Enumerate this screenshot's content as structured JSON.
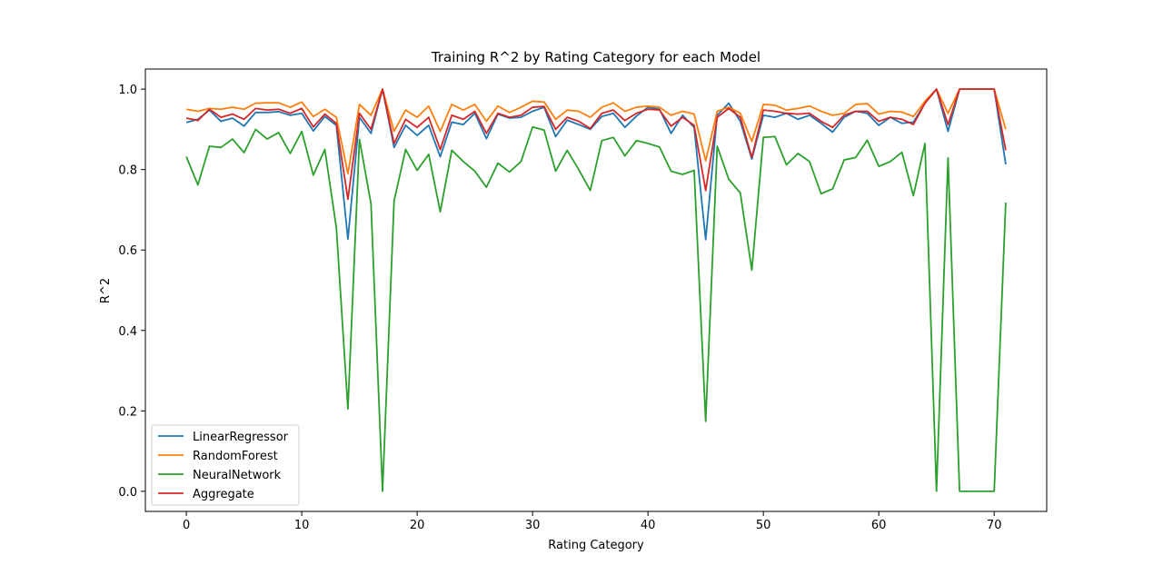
{
  "chart_data": {
    "type": "line",
    "title": "Training R^2 by Rating Category for each Model",
    "xlabel": "Rating Category",
    "ylabel": "R^2",
    "xlim": [
      -3.55,
      74.55
    ],
    "ylim": [
      -0.05,
      1.05
    ],
    "xticks": [
      0,
      10,
      20,
      30,
      40,
      50,
      60,
      70
    ],
    "yticks": [
      0.0,
      0.2,
      0.4,
      0.6,
      0.8,
      1.0
    ],
    "ytick_labels": [
      "0.0",
      "0.2",
      "0.4",
      "0.6",
      "0.8",
      "1.0"
    ],
    "grid": false,
    "legend_position": "lower-left",
    "x": [
      0,
      1,
      2,
      3,
      4,
      5,
      6,
      7,
      8,
      9,
      10,
      11,
      12,
      13,
      14,
      15,
      16,
      17,
      18,
      19,
      20,
      21,
      22,
      23,
      24,
      25,
      26,
      27,
      28,
      29,
      30,
      31,
      32,
      33,
      34,
      35,
      36,
      37,
      38,
      39,
      40,
      41,
      42,
      43,
      44,
      45,
      46,
      47,
      48,
      49,
      50,
      51,
      52,
      53,
      54,
      55,
      56,
      57,
      58,
      59,
      60,
      61,
      62,
      63,
      64,
      65,
      66,
      67,
      68,
      69,
      70,
      71
    ],
    "series": [
      {
        "name": "LinearRegressor",
        "color": "#1f77b4",
        "values": [
          0.917,
          0.925,
          0.948,
          0.92,
          0.928,
          0.908,
          0.942,
          0.942,
          0.944,
          0.935,
          0.94,
          0.896,
          0.932,
          0.91,
          0.627,
          0.93,
          0.89,
          1.0,
          0.855,
          0.91,
          0.885,
          0.91,
          0.832,
          0.918,
          0.912,
          0.94,
          0.877,
          0.938,
          0.928,
          0.93,
          0.945,
          0.955,
          0.882,
          0.923,
          0.912,
          0.9,
          0.932,
          0.94,
          0.905,
          0.933,
          0.955,
          0.95,
          0.89,
          0.935,
          0.905,
          0.626,
          0.935,
          0.965,
          0.92,
          0.826,
          0.935,
          0.93,
          0.94,
          0.925,
          0.935,
          0.915,
          0.893,
          0.93,
          0.945,
          0.94,
          0.91,
          0.93,
          0.915,
          0.918,
          0.965,
          1.0,
          0.895,
          1.0,
          1.0,
          1.0,
          1.0,
          0.813
        ]
      },
      {
        "name": "RandomForest",
        "color": "#ff7f0e",
        "values": [
          0.95,
          0.945,
          0.952,
          0.95,
          0.955,
          0.95,
          0.965,
          0.966,
          0.966,
          0.955,
          0.968,
          0.932,
          0.95,
          0.93,
          0.79,
          0.962,
          0.935,
          1.0,
          0.895,
          0.948,
          0.93,
          0.958,
          0.895,
          0.962,
          0.948,
          0.962,
          0.92,
          0.958,
          0.942,
          0.955,
          0.97,
          0.968,
          0.925,
          0.948,
          0.945,
          0.93,
          0.955,
          0.966,
          0.945,
          0.955,
          0.958,
          0.955,
          0.935,
          0.945,
          0.938,
          0.822,
          0.945,
          0.955,
          0.94,
          0.87,
          0.962,
          0.96,
          0.948,
          0.952,
          0.958,
          0.945,
          0.935,
          0.94,
          0.962,
          0.964,
          0.938,
          0.945,
          0.943,
          0.932,
          0.97,
          1.0,
          0.94,
          1.0,
          1.0,
          1.0,
          1.0,
          0.9
        ]
      },
      {
        "name": "NeuralNetwork",
        "color": "#2ca02c",
        "values": [
          0.832,
          0.762,
          0.858,
          0.855,
          0.876,
          0.842,
          0.9,
          0.876,
          0.892,
          0.84,
          0.895,
          0.786,
          0.85,
          0.655,
          0.205,
          0.875,
          0.715,
          0.0,
          0.722,
          0.85,
          0.798,
          0.838,
          0.695,
          0.848,
          0.82,
          0.796,
          0.756,
          0.816,
          0.794,
          0.82,
          0.906,
          0.898,
          0.796,
          0.848,
          0.8,
          0.748,
          0.872,
          0.88,
          0.834,
          0.872,
          0.865,
          0.856,
          0.796,
          0.788,
          0.798,
          0.174,
          0.858,
          0.776,
          0.742,
          0.55,
          0.88,
          0.882,
          0.812,
          0.84,
          0.82,
          0.74,
          0.752,
          0.824,
          0.83,
          0.873,
          0.808,
          0.82,
          0.843,
          0.735,
          0.865,
          0.0,
          0.829,
          0.0,
          0.0,
          0.0,
          0.0,
          0.718
        ]
      },
      {
        "name": "Aggregate",
        "color": "#d62728",
        "values": [
          0.928,
          0.922,
          0.95,
          0.93,
          0.938,
          0.925,
          0.952,
          0.948,
          0.95,
          0.94,
          0.952,
          0.906,
          0.938,
          0.915,
          0.726,
          0.94,
          0.9,
          1.0,
          0.865,
          0.925,
          0.905,
          0.93,
          0.85,
          0.935,
          0.925,
          0.945,
          0.89,
          0.94,
          0.93,
          0.935,
          0.955,
          0.957,
          0.9,
          0.93,
          0.92,
          0.902,
          0.94,
          0.948,
          0.922,
          0.94,
          0.95,
          0.948,
          0.908,
          0.93,
          0.91,
          0.748,
          0.93,
          0.952,
          0.93,
          0.83,
          0.948,
          0.945,
          0.94,
          0.938,
          0.94,
          0.92,
          0.905,
          0.935,
          0.945,
          0.945,
          0.92,
          0.93,
          0.925,
          0.912,
          0.965,
          1.0,
          0.912,
          1.0,
          1.0,
          1.0,
          1.0,
          0.848
        ]
      }
    ]
  }
}
